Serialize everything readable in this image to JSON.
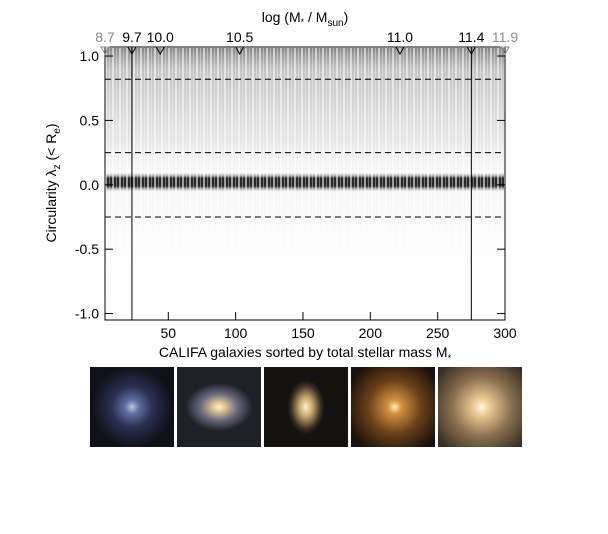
{
  "chart_data": {
    "type": "density",
    "xlabel": [
      "CALIFA galaxies sorted by total stellar mass M",
      "*"
    ],
    "ylabel": [
      "Circularity λ",
      "z",
      " (< R",
      "e",
      ")"
    ],
    "x2label": [
      "log (M",
      "*",
      " / M",
      "sun",
      ")"
    ],
    "xlim": [
      3,
      300
    ],
    "ylim": [
      -1.05,
      1.07
    ],
    "xticks": [
      50,
      100,
      150,
      200,
      250,
      300
    ],
    "yticks": [
      {
        "value": -1,
        "label": "-1.0"
      },
      -0.5,
      {
        "value": 0,
        "label": "0.0"
      },
      0.5,
      {
        "value": 1,
        "label": "1.0"
      }
    ],
    "x2ticks": [
      {
        "value": 3,
        "label": "8.7"
      },
      {
        "value": 23,
        "label": "9.7"
      },
      {
        "value": 44,
        "label": "10.0"
      },
      {
        "value": 103,
        "label": "10.5"
      },
      {
        "value": 222,
        "label": "11.0"
      },
      {
        "value": 275,
        "label": "11.4"
      },
      {
        "value": 300,
        "label": "11.9"
      }
    ],
    "x2tick_colors": [
      "#888888",
      "#000000",
      "#000000",
      "#000000",
      "#000000",
      "#000000",
      "#888888"
    ],
    "hlines": [
      0.82,
      0.25,
      -0.25
    ],
    "vlines": [
      23,
      275
    ]
  }
}
